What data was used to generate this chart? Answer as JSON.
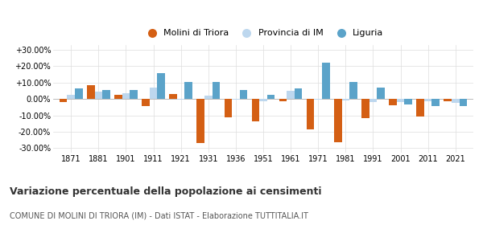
{
  "years": [
    1871,
    1881,
    1901,
    1911,
    1921,
    1931,
    1936,
    1951,
    1961,
    1971,
    1981,
    1991,
    2001,
    2011,
    2021
  ],
  "molini": [
    -2.0,
    8.5,
    2.5,
    -4.5,
    3.0,
    -27.0,
    -11.0,
    -13.5,
    -1.5,
    -18.5,
    -26.5,
    -11.5,
    -4.0,
    -10.5,
    -1.5
  ],
  "provincia": [
    2.5,
    4.5,
    3.5,
    7.0,
    -0.5,
    2.0,
    -0.5,
    -1.5,
    5.0,
    -0.5,
    -1.0,
    -2.0,
    -2.0,
    -1.5,
    -2.5
  ],
  "liguria": [
    6.5,
    5.5,
    5.5,
    16.0,
    10.5,
    10.5,
    5.5,
    2.5,
    6.5,
    22.0,
    10.5,
    7.0,
    -3.5,
    -4.5,
    -4.5
  ],
  "molini_color": "#d45f14",
  "provincia_color": "#bdd7ee",
  "liguria_color": "#5ba3c9",
  "title": "Variazione percentuale della popolazione ai censimenti",
  "subtitle": "COMUNE DI MOLINI DI TRIORA (IM) - Dati ISTAT - Elaborazione TUTTITALIA.IT",
  "legend_labels": [
    "Molini di Triora",
    "Provincia di IM",
    "Liguria"
  ],
  "yticks": [
    -30,
    -20,
    -10,
    0,
    10,
    20,
    30
  ],
  "ylim": [
    -33,
    33
  ],
  "background_color": "#ffffff",
  "grid_color": "#dddddd"
}
